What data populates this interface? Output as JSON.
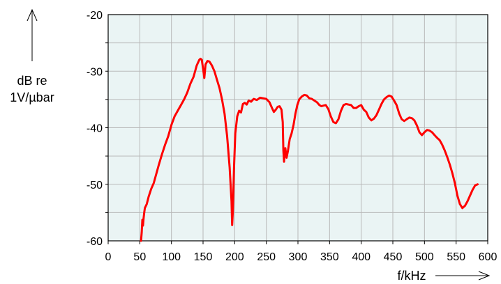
{
  "chart_data": {
    "type": "line",
    "title": "",
    "xlabel": "f/kHz",
    "ylabel_lines": [
      "dB re",
      "1V/µbar"
    ],
    "xlim": [
      0,
      600
    ],
    "ylim": [
      -60,
      -20
    ],
    "x_ticks": [
      0,
      50,
      100,
      150,
      200,
      250,
      300,
      350,
      400,
      450,
      500,
      550,
      600
    ],
    "y_ticks": [
      -60,
      -50,
      -40,
      -30,
      -20
    ],
    "grid": true,
    "plot_background": "#eaf4f4",
    "grid_color": "#b8b8b8",
    "series": [
      {
        "color": "#ff0000",
        "points": [
          [
            52,
            -60
          ],
          [
            53,
            -58.5
          ],
          [
            54,
            -56.3
          ],
          [
            55,
            -57.3
          ],
          [
            56,
            -56
          ],
          [
            57,
            -55
          ],
          [
            58,
            -54.2
          ],
          [
            61,
            -53.5
          ],
          [
            64,
            -52.2
          ],
          [
            68,
            -50.8
          ],
          [
            72,
            -49.8
          ],
          [
            76,
            -48.2
          ],
          [
            80,
            -46.6
          ],
          [
            85,
            -44.7
          ],
          [
            90,
            -43
          ],
          [
            95,
            -41.5
          ],
          [
            100,
            -39.5
          ],
          [
            105,
            -38
          ],
          [
            110,
            -37
          ],
          [
            115,
            -36
          ],
          [
            120,
            -35
          ],
          [
            125,
            -33.8
          ],
          [
            130,
            -32.2
          ],
          [
            135,
            -31
          ],
          [
            140,
            -29
          ],
          [
            144,
            -28
          ],
          [
            146,
            -27.8
          ],
          [
            148,
            -28
          ],
          [
            150,
            -29.5
          ],
          [
            152,
            -31.2
          ],
          [
            154,
            -28.8
          ],
          [
            157,
            -28.2
          ],
          [
            160,
            -28.3
          ],
          [
            164,
            -29
          ],
          [
            168,
            -30
          ],
          [
            172,
            -31.5
          ],
          [
            176,
            -33
          ],
          [
            180,
            -35
          ],
          [
            184,
            -37.5
          ],
          [
            188,
            -41.5
          ],
          [
            192,
            -47
          ],
          [
            195,
            -53
          ],
          [
            196,
            -57.2
          ],
          [
            197,
            -55
          ],
          [
            199,
            -47
          ],
          [
            201,
            -41
          ],
          [
            204,
            -38
          ],
          [
            207,
            -37
          ],
          [
            210,
            -37.3
          ],
          [
            213,
            -35.8
          ],
          [
            216,
            -35.6
          ],
          [
            219,
            -35.9
          ],
          [
            222,
            -35.2
          ],
          [
            226,
            -35.4
          ],
          [
            230,
            -34.9
          ],
          [
            235,
            -35.1
          ],
          [
            240,
            -34.7
          ],
          [
            245,
            -34.8
          ],
          [
            250,
            -34.9
          ],
          [
            255,
            -35.5
          ],
          [
            259,
            -36.5
          ],
          [
            262,
            -37.2
          ],
          [
            265,
            -36.8
          ],
          [
            268,
            -36.3
          ],
          [
            271,
            -36.2
          ],
          [
            274,
            -36.8
          ],
          [
            276,
            -39
          ],
          [
            277,
            -44
          ],
          [
            278,
            -46
          ],
          [
            279,
            -44.3
          ],
          [
            280,
            -43.6
          ],
          [
            281,
            -44.5
          ],
          [
            282,
            -45.3
          ],
          [
            284,
            -44.2
          ],
          [
            287,
            -42
          ],
          [
            290,
            -41
          ],
          [
            293,
            -39.5
          ],
          [
            296,
            -37.5
          ],
          [
            299,
            -36
          ],
          [
            302,
            -35
          ],
          [
            306,
            -34.5
          ],
          [
            310,
            -34.2
          ],
          [
            314,
            -34.3
          ],
          [
            318,
            -34.8
          ],
          [
            322,
            -34.9
          ],
          [
            326,
            -35.2
          ],
          [
            330,
            -35.5
          ],
          [
            334,
            -36
          ],
          [
            337,
            -36.2
          ],
          [
            340,
            -36.1
          ],
          [
            344,
            -36
          ],
          [
            348,
            -36.7
          ],
          [
            352,
            -38
          ],
          [
            356,
            -39
          ],
          [
            360,
            -39.2
          ],
          [
            364,
            -38.5
          ],
          [
            368,
            -37
          ],
          [
            372,
            -36
          ],
          [
            376,
            -35.8
          ],
          [
            380,
            -35.9
          ],
          [
            384,
            -36
          ],
          [
            388,
            -36.5
          ],
          [
            392,
            -36.5
          ],
          [
            396,
            -36.2
          ],
          [
            400,
            -36
          ],
          [
            404,
            -36.8
          ],
          [
            408,
            -37.2
          ],
          [
            412,
            -38.2
          ],
          [
            416,
            -38.7
          ],
          [
            420,
            -38.4
          ],
          [
            424,
            -37.8
          ],
          [
            428,
            -36.8
          ],
          [
            432,
            -35.8
          ],
          [
            436,
            -35
          ],
          [
            440,
            -34.6
          ],
          [
            444,
            -34.3
          ],
          [
            448,
            -34.5
          ],
          [
            452,
            -35.2
          ],
          [
            456,
            -36
          ],
          [
            460,
            -37.5
          ],
          [
            464,
            -38.5
          ],
          [
            468,
            -38.8
          ],
          [
            472,
            -38.5
          ],
          [
            476,
            -38.2
          ],
          [
            480,
            -38.3
          ],
          [
            484,
            -38.7
          ],
          [
            488,
            -39.6
          ],
          [
            492,
            -40.8
          ],
          [
            496,
            -41.3
          ],
          [
            500,
            -40.8
          ],
          [
            504,
            -40.4
          ],
          [
            508,
            -40.5
          ],
          [
            512,
            -40.8
          ],
          [
            516,
            -41.3
          ],
          [
            520,
            -41.8
          ],
          [
            524,
            -42.2
          ],
          [
            528,
            -43
          ],
          [
            532,
            -44
          ],
          [
            536,
            -45.2
          ],
          [
            540,
            -46.5
          ],
          [
            544,
            -48
          ],
          [
            548,
            -49.8
          ],
          [
            552,
            -52
          ],
          [
            556,
            -53.5
          ],
          [
            560,
            -54.2
          ],
          [
            564,
            -53.8
          ],
          [
            568,
            -53
          ],
          [
            572,
            -52
          ],
          [
            576,
            -51
          ],
          [
            580,
            -50.2
          ],
          [
            584,
            -50
          ]
        ]
      }
    ]
  }
}
